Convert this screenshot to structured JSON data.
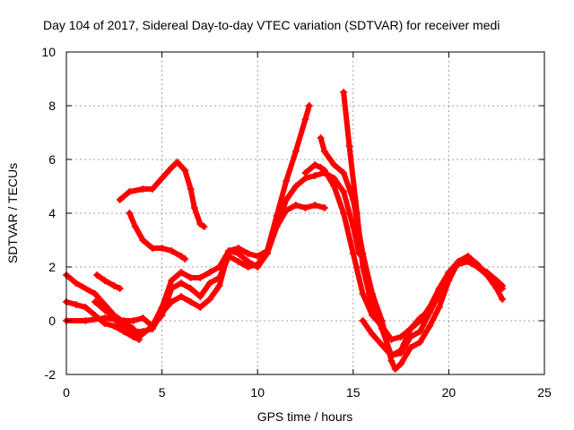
{
  "chart_data": {
    "type": "scatter",
    "title": "Day 104 of 2017, Sidereal Day-to-day VTEC variation (SDTVAR) for receiver medi",
    "xlabel": "GPS time / hours",
    "ylabel": "SDTVAR / TECUs",
    "xlim": [
      0,
      25
    ],
    "ylim": [
      -2,
      10
    ],
    "xticks": [
      "0",
      "5",
      "10",
      "15",
      "20",
      "25"
    ],
    "yticks": [
      "-2",
      "0",
      "2",
      "4",
      "6",
      "8",
      "10"
    ],
    "grid": true,
    "marker": "+",
    "color": "#ff0000",
    "series": [
      {
        "name": "track-1",
        "x": [
          0,
          0.5,
          1,
          1.5,
          2,
          2.5,
          3,
          3.5,
          3.8
        ],
        "y": [
          0.7,
          0.6,
          0.5,
          0.2,
          -0.1,
          -0.2,
          -0.4,
          -0.6,
          -0.7
        ]
      },
      {
        "name": "track-2",
        "x": [
          0,
          0.5,
          1.5,
          2.5,
          3.5,
          3.8,
          4.5,
          5,
          5.5,
          6,
          6.5,
          7,
          7.5,
          8,
          8.5,
          9,
          9.5,
          10,
          10.5,
          11,
          11.5,
          12,
          12.5,
          13,
          13.5,
          14,
          14.5,
          15,
          15.3
        ],
        "y": [
          1.7,
          1.4,
          1.0,
          0.2,
          -0.3,
          -0.6,
          -0.2,
          0.5,
          1.5,
          1.8,
          1.6,
          1.6,
          1.8,
          2.0,
          2.6,
          2.5,
          2.2,
          2.0,
          2.5,
          3.5,
          4.5,
          5.0,
          5.3,
          5.4,
          5.5,
          5.3,
          4.8,
          3.5,
          2.5
        ]
      },
      {
        "name": "track-3",
        "x": [
          0,
          1,
          2,
          3,
          3.5,
          4,
          4.5,
          5,
          5.5,
          6,
          6.5,
          7,
          7.5,
          8,
          8.5,
          9,
          9.5,
          10,
          10.5,
          11,
          11.5,
          12,
          12.5,
          13,
          13.5
        ],
        "y": [
          0.0,
          0.0,
          0.1,
          0.0,
          0.0,
          0.1,
          -0.2,
          0.2,
          1.2,
          1.4,
          1.2,
          0.9,
          1.4,
          1.6,
          2.4,
          2.2,
          2.0,
          2.1,
          2.5,
          3.5,
          4.1,
          4.3,
          4.2,
          4.3,
          4.2
        ]
      },
      {
        "name": "track-4",
        "x": [
          1.5,
          2,
          2.5,
          3,
          3.3,
          4,
          4.5,
          5,
          5.5,
          6,
          6.5,
          7,
          7.5,
          8,
          8.5,
          9,
          9.5,
          10,
          10.5,
          11,
          11.5,
          12,
          12.5,
          12.7
        ],
        "y": [
          0.7,
          0.4,
          0.1,
          -0.3,
          -0.4,
          -0.4,
          -0.3,
          0.3,
          0.7,
          0.9,
          0.7,
          0.5,
          0.8,
          1.3,
          2.6,
          2.7,
          2.5,
          2.4,
          2.6,
          3.9,
          5.2,
          6.3,
          7.5,
          8.0
        ]
      },
      {
        "name": "track-5",
        "x": [
          1.6,
          2,
          2.5,
          2.8
        ],
        "y": [
          1.7,
          1.5,
          1.3,
          1.2
        ]
      },
      {
        "name": "track-6",
        "x": [
          2.8,
          3.3,
          4,
          4.5,
          5,
          5.5,
          5.8,
          6.2,
          6.5,
          6.7,
          7,
          7.2
        ],
        "y": [
          4.5,
          4.8,
          4.9,
          4.9,
          5.3,
          5.7,
          5.9,
          5.6,
          4.9,
          4.2,
          3.6,
          3.5
        ]
      },
      {
        "name": "track-7",
        "x": [
          3.3,
          3.6,
          4,
          4.5,
          5,
          5.5,
          6,
          6.2
        ],
        "y": [
          4.0,
          3.5,
          3.0,
          2.7,
          2.7,
          2.6,
          2.4,
          2.3
        ]
      },
      {
        "name": "track-8",
        "x": [
          12.5,
          13,
          13.3,
          13.5,
          14,
          14.5,
          15,
          15.5,
          16,
          16.5,
          17,
          17.5,
          18,
          18.5,
          19,
          19.5,
          20,
          20.5,
          21,
          21.5,
          22,
          22.5,
          22.8
        ],
        "y": [
          5.5,
          5.8,
          5.7,
          5.6,
          5.0,
          4.0,
          2.5,
          1.0,
          0.2,
          -0.2,
          -0.7,
          -0.6,
          -0.3,
          0.0,
          0.5,
          1.2,
          1.8,
          2.1,
          2.2,
          2.0,
          1.8,
          1.5,
          1.3
        ]
      },
      {
        "name": "track-9",
        "x": [
          13.3,
          13.5,
          14,
          14.5,
          15,
          15.5,
          16,
          16.5,
          17,
          17.2,
          17.5,
          18,
          18.5,
          19,
          19.5,
          20,
          20.5,
          21,
          21.5,
          22,
          22.5,
          22.8
        ],
        "y": [
          6.8,
          6.3,
          5.8,
          5.5,
          4.5,
          2.5,
          1.0,
          0.0,
          -1.5,
          -1.8,
          -1.6,
          -1.0,
          -0.8,
          -0.2,
          0.5,
          1.5,
          2.2,
          2.4,
          2.0,
          1.7,
          1.2,
          0.8
        ]
      },
      {
        "name": "track-10",
        "x": [
          14.5,
          14.8,
          15.2,
          15.5,
          16,
          16.5,
          17,
          17.5,
          18,
          18.5,
          19
        ],
        "y": [
          8.5,
          6.5,
          4.0,
          2.0,
          0.5,
          -0.3,
          -1.3,
          -1.1,
          -0.3,
          0.1,
          0.4
        ]
      },
      {
        "name": "track-11",
        "x": [
          15.5,
          16,
          16.5,
          17,
          17.5,
          18,
          18.5,
          19,
          19.5,
          20,
          20.5,
          21,
          21.5,
          22,
          22.5,
          22.8
        ],
        "y": [
          0.0,
          -0.5,
          -0.9,
          -1.3,
          -1.2,
          -0.6,
          -0.4,
          0.3,
          1.0,
          1.8,
          2.2,
          2.4,
          2.1,
          1.7,
          1.3,
          1.2
        ]
      }
    ]
  }
}
